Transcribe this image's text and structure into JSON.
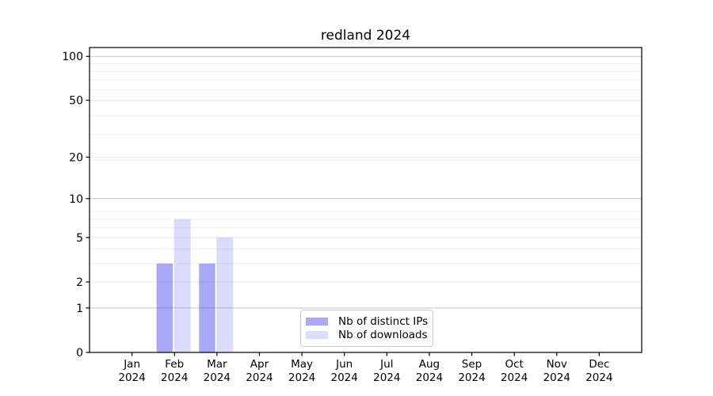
{
  "title": "redland 2024",
  "legend": {
    "items": [
      {
        "label": "Nb of distinct IPs"
      },
      {
        "label": "Nb of downloads"
      }
    ]
  },
  "axes": {
    "y_tick_labels": [
      "100",
      "50",
      "20",
      "10",
      "5",
      "2",
      "1",
      "0"
    ],
    "x_months": [
      "Jan",
      "Feb",
      "Mar",
      "Apr",
      "May",
      "Jun",
      "Jul",
      "Aug",
      "Sep",
      "Oct",
      "Nov",
      "Dec"
    ],
    "x_year": "2024"
  },
  "colors": {
    "bar_distinct_ips": "rgba(97,97,239,0.55)",
    "bar_downloads": "rgba(135,135,238,0.30)",
    "grid_decade": "#c3c3c3",
    "grid_major_light": "#e7e7e7",
    "grid_minor": "#f1f1f1",
    "spine": "#000000",
    "tick_text": "#000000",
    "legend_border": "#cccccc"
  },
  "chart_data": {
    "type": "bar",
    "title": "redland 2024",
    "categories": [
      "Jan 2024",
      "Feb 2024",
      "Mar 2024",
      "Apr 2024",
      "May 2024",
      "Jun 2024",
      "Jul 2024",
      "Aug 2024",
      "Sep 2024",
      "Oct 2024",
      "Nov 2024",
      "Dec 2024"
    ],
    "series": [
      {
        "name": "Nb of distinct IPs",
        "values": [
          0,
          3,
          3,
          0,
          0,
          0,
          0,
          0,
          0,
          0,
          0,
          0
        ]
      },
      {
        "name": "Nb of downloads",
        "values": [
          0,
          7,
          5,
          0,
          0,
          0,
          0,
          0,
          0,
          0,
          0,
          0
        ]
      }
    ],
    "y_scale": "log10(value+1)",
    "y_ticks": [
      0,
      1,
      2,
      5,
      10,
      20,
      50,
      100
    ],
    "y_decade_ticks": [
      1,
      10,
      100
    ],
    "y_minor_gridlines": [
      3,
      4,
      6,
      7,
      8,
      19,
      29,
      39,
      49,
      59,
      69,
      79,
      89
    ],
    "ylim": [
      0,
      115
    ],
    "grid": "horizontal",
    "legend_position": "lower center"
  }
}
